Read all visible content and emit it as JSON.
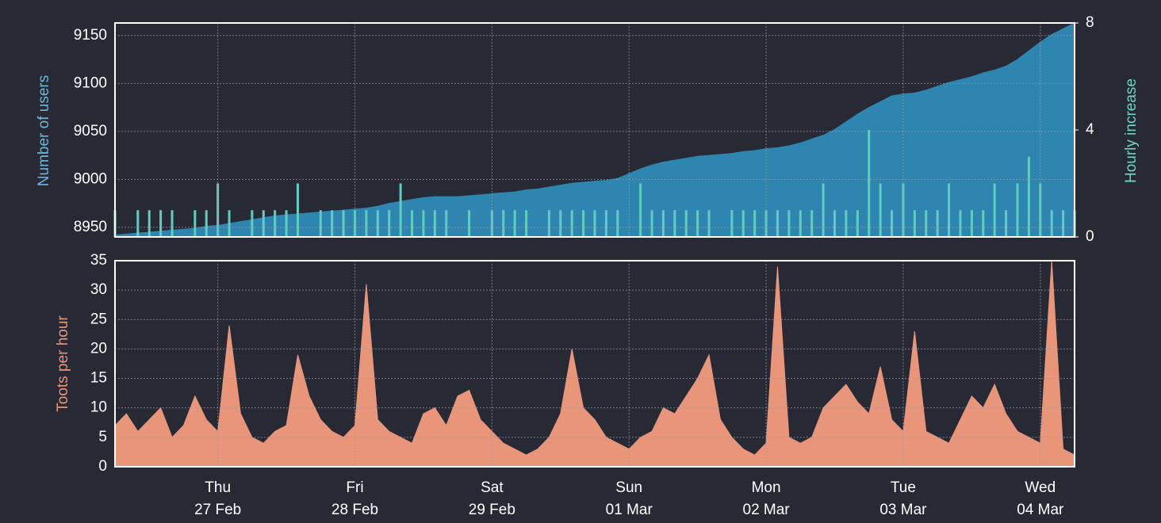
{
  "chart_data": [
    {
      "type": "area",
      "ylabel": "Number of users",
      "y2label": "Hourly increase",
      "x": [
        0,
        2,
        4,
        6,
        8,
        10,
        12,
        14,
        16,
        18,
        20,
        22,
        24,
        26,
        28,
        30,
        32,
        34,
        36,
        38,
        40,
        42,
        44,
        46,
        48,
        50,
        52,
        54,
        56,
        58,
        60,
        62,
        64,
        66,
        68,
        70,
        72,
        74,
        76,
        78,
        80,
        82,
        84,
        86,
        88,
        90,
        92,
        94,
        96,
        98,
        100,
        102,
        104,
        106,
        108,
        110,
        112,
        114,
        116,
        118,
        120,
        122,
        124,
        126,
        128,
        130,
        132,
        134,
        136,
        138,
        140,
        142,
        144,
        146,
        148,
        150,
        152,
        154,
        156,
        158,
        160,
        162,
        164,
        166,
        168
      ],
      "xlim": [
        0,
        168
      ],
      "ylim": [
        8940,
        9163
      ],
      "yticks": [
        8950,
        9000,
        9050,
        9100,
        9150
      ],
      "y2lim": [
        0,
        8
      ],
      "y2ticks": [
        0,
        4,
        8
      ],
      "grid": true,
      "series": [
        {
          "type": "area",
          "color": "#2e86b0",
          "values": [
            8942,
            8943,
            8944,
            8945,
            8946,
            8947,
            8948,
            8949,
            8951,
            8952,
            8954,
            8956,
            8958,
            8960,
            8962,
            8963,
            8964,
            8965,
            8966,
            8967,
            8968,
            8969,
            8970,
            8972,
            8975,
            8977,
            8979,
            8981,
            8982,
            8982,
            8982,
            8983,
            8984,
            8985,
            8986,
            8987,
            8989,
            8990,
            8992,
            8994,
            8996,
            8997,
            8998,
            8999,
            9001,
            9006,
            9011,
            9015,
            9018,
            9020,
            9022,
            9024,
            9025,
            9026,
            9027,
            9029,
            9030,
            9032,
            9033,
            9035,
            9038,
            9042,
            9046,
            9052,
            9060,
            9068,
            9075,
            9081,
            9087,
            9089,
            9090,
            9093,
            9097,
            9101,
            9104,
            9107,
            9111,
            9114,
            9118,
            9125,
            9134,
            9143,
            9151,
            9157,
            9163
          ]
        },
        {
          "type": "bar",
          "axis": "y2",
          "color": "#5fcdc0",
          "values": [
            1,
            0,
            1,
            1,
            1,
            1,
            0,
            1,
            1,
            2,
            1,
            0,
            1,
            1,
            1,
            1,
            2,
            0,
            1,
            1,
            1,
            1,
            1,
            1,
            1,
            2,
            1,
            1,
            1,
            1,
            0,
            1,
            0,
            1,
            1,
            1,
            1,
            0,
            1,
            1,
            1,
            1,
            1,
            1,
            1,
            0,
            2,
            1,
            1,
            1,
            1,
            1,
            1,
            0,
            1,
            1,
            1,
            1,
            1,
            1,
            1,
            1,
            2,
            1,
            1,
            1,
            4,
            2,
            1,
            2,
            1,
            1,
            1,
            2,
            1,
            1,
            1,
            2,
            1,
            2,
            3,
            2,
            1,
            1,
            1
          ]
        }
      ]
    },
    {
      "type": "area",
      "ylabel": "Toots per hour",
      "color": "#e8957a",
      "x": [
        0,
        2,
        4,
        6,
        8,
        10,
        12,
        14,
        16,
        18,
        20,
        22,
        24,
        26,
        28,
        30,
        32,
        34,
        36,
        38,
        40,
        42,
        44,
        46,
        48,
        50,
        52,
        54,
        56,
        58,
        60,
        62,
        64,
        66,
        68,
        70,
        72,
        74,
        76,
        78,
        80,
        82,
        84,
        86,
        88,
        90,
        92,
        94,
        96,
        98,
        100,
        102,
        104,
        106,
        108,
        110,
        112,
        114,
        116,
        118,
        120,
        122,
        124,
        126,
        128,
        130,
        132,
        134,
        136,
        138,
        140,
        142,
        144,
        146,
        148,
        150,
        152,
        154,
        156,
        158,
        160,
        162,
        164,
        166,
        168
      ],
      "values": [
        7,
        9,
        6,
        8,
        10,
        5,
        7,
        12,
        8,
        6,
        24,
        9,
        5,
        4,
        6,
        7,
        19,
        12,
        8,
        6,
        5,
        7,
        31,
        8,
        6,
        5,
        4,
        9,
        10,
        7,
        12,
        13,
        8,
        6,
        4,
        3,
        2,
        3,
        5,
        9,
        20,
        10,
        8,
        5,
        4,
        3,
        5,
        6,
        10,
        9,
        12,
        15,
        19,
        8,
        5,
        3,
        2,
        4,
        34,
        5,
        4,
        5,
        10,
        12,
        14,
        11,
        9,
        17,
        8,
        6,
        23,
        6,
        5,
        4,
        8,
        12,
        10,
        14,
        9,
        6,
        5,
        4,
        35,
        3,
        2
      ],
      "xlim": [
        0,
        168
      ],
      "xticks": [
        {
          "value": 18,
          "label": [
            "Thu",
            "27 Feb"
          ]
        },
        {
          "value": 42,
          "label": [
            "Fri",
            "28 Feb"
          ]
        },
        {
          "value": 66,
          "label": [
            "Sat",
            "29 Feb"
          ]
        },
        {
          "value": 90,
          "label": [
            "Sun",
            "01 Mar"
          ]
        },
        {
          "value": 114,
          "label": [
            "Mon",
            "02 Mar"
          ]
        },
        {
          "value": 138,
          "label": [
            "Tue",
            "03 Mar"
          ]
        },
        {
          "value": 162,
          "label": [
            "Wed",
            "04 Mar"
          ]
        }
      ],
      "ylim": [
        0,
        35
      ],
      "yticks": [
        0,
        5,
        10,
        15,
        20,
        25,
        30,
        35
      ],
      "grid": true
    }
  ]
}
